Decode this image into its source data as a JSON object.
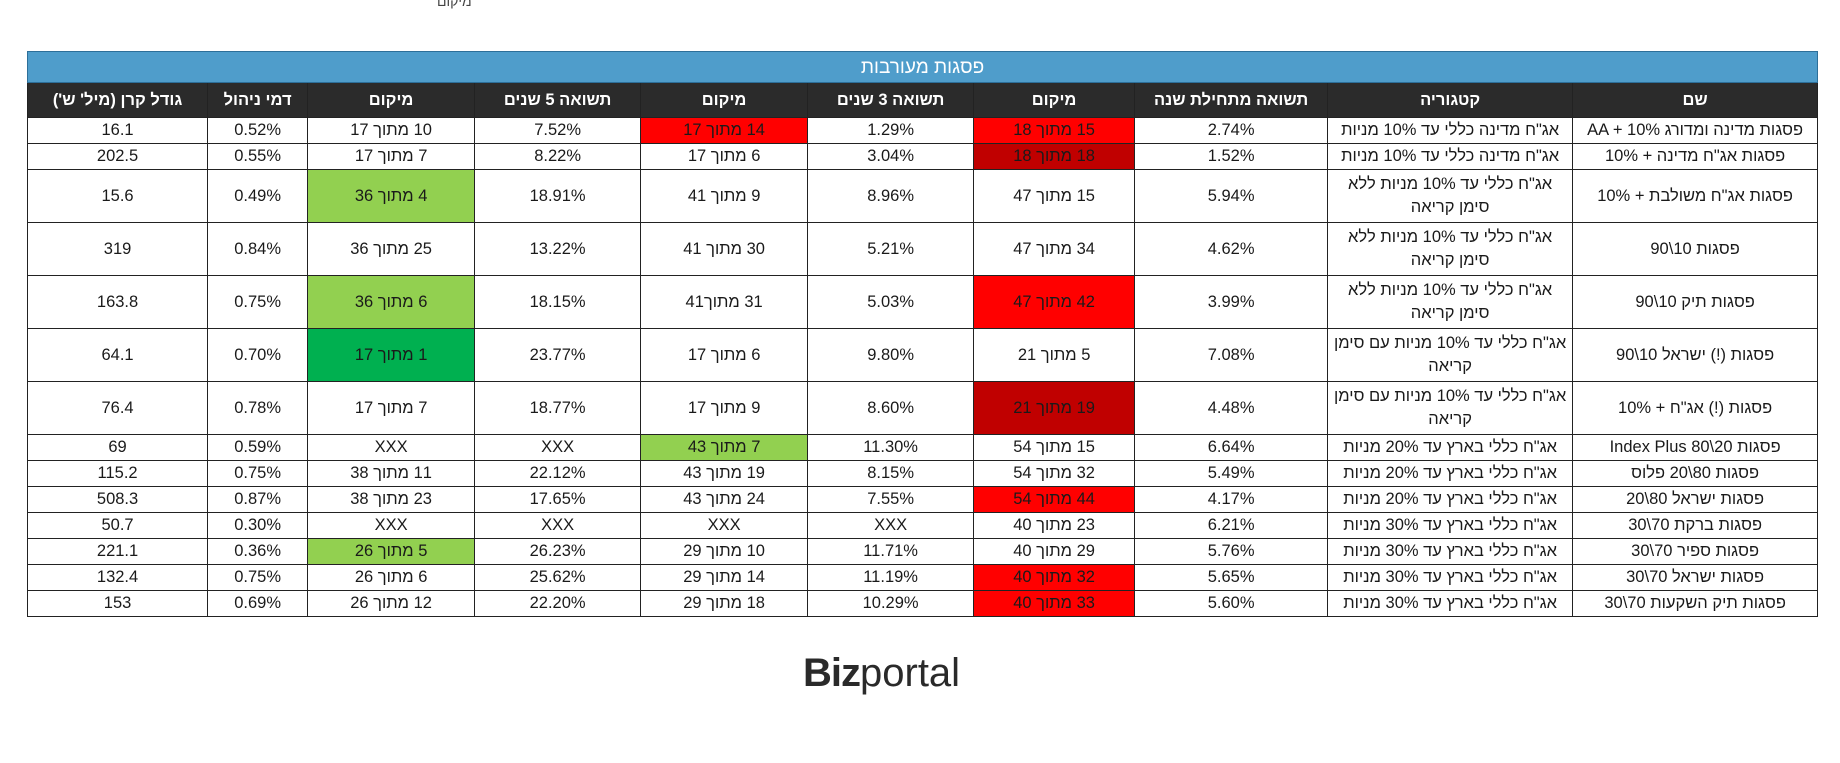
{
  "top_note": "מיקום",
  "table": {
    "title": "פסגות מעורבות",
    "headers": [
      "שם",
      "קטגוריה",
      "תשואה מתחילת שנה",
      "מיקום",
      "תשואה 3 שנים",
      "מיקום",
      "תשואה 5 שנים",
      "מיקום",
      "דמי ניהול",
      "גודל קרן (מיל' ש')"
    ],
    "rows": [
      {
        "tall": false,
        "cells": [
          "פסגות מדינה ומדורג AA + 10%",
          "אג\"ח מדינה כללי עד 10% מניות",
          "2.74%",
          "15 מתוך 18",
          "1.29%",
          "14 מתוך 17",
          "7.52%",
          "10 מתוך 17",
          "0.52%",
          "16.1"
        ],
        "colors": [
          "",
          "",
          "",
          "red",
          "",
          "red",
          "",
          "",
          "",
          ""
        ]
      },
      {
        "tall": false,
        "cells": [
          "פסגות אג\"ח מדינה + 10%",
          "אג\"ח מדינה כללי עד 10% מניות",
          "1.52%",
          "18 מתוך 18",
          "3.04%",
          "6 מתוך 17",
          "8.22%",
          "7 מתוך 17",
          "0.55%",
          "202.5"
        ],
        "colors": [
          "",
          "",
          "",
          "dred",
          "",
          "",
          "",
          "",
          "",
          ""
        ]
      },
      {
        "tall": true,
        "cells": [
          "פסגות אג\"ח משולבת + 10%",
          "אג\"ח כללי עד 10% מניות ללא סימן קריאה",
          "5.94%",
          "15 מתוך 47",
          "8.96%",
          "9 מתוך 41",
          "18.91%",
          "4 מתוך 36",
          "0.49%",
          "15.6"
        ],
        "colors": [
          "",
          "",
          "",
          "",
          "",
          "",
          "",
          "lgreen",
          "",
          ""
        ]
      },
      {
        "tall": true,
        "cells": [
          "פסגות 10\\90",
          "אג\"ח כללי עד 10% מניות ללא סימן קריאה",
          "4.62%",
          "34 מתוך 47",
          "5.21%",
          "30 מתוך 41",
          "13.22%",
          "25 מתוך 36",
          "0.84%",
          "319"
        ],
        "colors": [
          "",
          "",
          "",
          "",
          "",
          "",
          "",
          "",
          "",
          ""
        ]
      },
      {
        "tall": true,
        "cells": [
          "פסגות תיק 10\\90",
          "אג\"ח כללי עד 10% מניות ללא סימן קריאה",
          "3.99%",
          "42 מתוך 47",
          "5.03%",
          "31 מתוך41",
          "18.15%",
          "6 מתוך 36",
          "0.75%",
          "163.8"
        ],
        "colors": [
          "",
          "",
          "",
          "red",
          "",
          "",
          "",
          "lgreen",
          "",
          ""
        ]
      },
      {
        "tall": true,
        "cells": [
          "פסגות (!) ישראל 10\\90",
          "אג\"ח כללי עד 10% מניות עם סימן קריאה",
          "7.08%",
          "5 מתוך 21",
          "9.80%",
          "6 מתוך 17",
          "23.77%",
          "1 מתוך 17",
          "0.70%",
          "64.1"
        ],
        "colors": [
          "",
          "",
          "",
          "",
          "",
          "",
          "",
          "dgreen",
          "",
          ""
        ]
      },
      {
        "tall": true,
        "cells": [
          "פסגות (!) אג\"ח + 10%",
          "אג\"ח כללי עד 10% מניות עם סימן קריאה",
          "4.48%",
          "19 מתוך 21",
          "8.60%",
          "9 מתוך 17",
          "18.77%",
          "7 מתוך 17",
          "0.78%",
          "76.4"
        ],
        "colors": [
          "",
          "",
          "",
          "dred",
          "",
          "",
          "",
          "",
          "",
          ""
        ]
      },
      {
        "tall": false,
        "cells": [
          "פסגות Index Plus 80\\20",
          "אג\"ח כללי בארץ עד 20% מניות",
          "6.64%",
          "15 מתוך 54",
          "11.30%",
          "7 מתוך 43",
          "XXX",
          "XXX",
          "0.59%",
          "69"
        ],
        "colors": [
          "",
          "",
          "",
          "",
          "",
          "lgreen",
          "",
          "",
          "",
          ""
        ]
      },
      {
        "tall": false,
        "cells": [
          "פסגות 80\\20 פלוס",
          "אג\"ח כללי בארץ עד 20% מניות",
          "5.49%",
          "32 מתוך 54",
          "8.15%",
          "19 מתוך 43",
          "22.12%",
          "11 מתוך 38",
          "0.75%",
          "115.2"
        ],
        "colors": [
          "",
          "",
          "",
          "",
          "",
          "",
          "",
          "",
          "",
          ""
        ]
      },
      {
        "tall": false,
        "cells": [
          "פסגות ישראל 80\\20",
          "אג\"ח כללי בארץ עד 20% מניות",
          "4.17%",
          "44 מתוך 54",
          "7.55%",
          "24 מתוך 43",
          "17.65%",
          "23 מתוך 38",
          "0.87%",
          "508.3"
        ],
        "colors": [
          "",
          "",
          "",
          "red",
          "",
          "",
          "",
          "",
          "",
          ""
        ]
      },
      {
        "tall": false,
        "cells": [
          "פסגות ברקת 70\\30",
          "אג\"ח כללי בארץ עד 30% מניות",
          "6.21%",
          "23 מתוך 40",
          "XXX",
          "XXX",
          "XXX",
          "XXX",
          "0.30%",
          "50.7"
        ],
        "colors": [
          "",
          "",
          "",
          "",
          "",
          "",
          "",
          "",
          "",
          ""
        ]
      },
      {
        "tall": false,
        "cells": [
          "פסגות ספיר 70\\30",
          "אג\"ח כללי בארץ עד 30% מניות",
          "5.76%",
          "29 מתוך 40",
          "11.71%",
          "10 מתוך 29",
          "26.23%",
          "5 מתוך 26",
          "0.36%",
          "221.1"
        ],
        "colors": [
          "",
          "",
          "",
          "",
          "",
          "",
          "",
          "lgreen",
          "",
          ""
        ]
      },
      {
        "tall": false,
        "cells": [
          "פסגות ישראל 70\\30",
          "אג\"ח כללי בארץ עד 30% מניות",
          "5.65%",
          "32 מתוך 40",
          "11.19%",
          "14 מתוך 29",
          "25.62%",
          "6 מתוך 26",
          "0.75%",
          "132.4"
        ],
        "colors": [
          "",
          "",
          "",
          "red",
          "",
          "",
          "",
          "",
          "",
          ""
        ]
      },
      {
        "tall": false,
        "cells": [
          "פסגות תיק השקעות 70\\30",
          "אג\"ח כללי בארץ עד 30% מניות",
          "5.60%",
          "33 מתוך 40",
          "10.29%",
          "18 מתוך 29",
          "22.20%",
          "12 מתוך 26",
          "0.69%",
          "153"
        ],
        "colors": [
          "",
          "",
          "",
          "red",
          "",
          "",
          "",
          "",
          "",
          ""
        ]
      }
    ]
  },
  "logo": {
    "bold": "Biz",
    "regular": "portal"
  },
  "colors": {
    "red": "#ff0000",
    "dred": "#c00000",
    "lgreen": "#92d050",
    "dgreen": "#00b050",
    "title_bg": "#4f9dcb",
    "header_bg": "#2b2b2b"
  }
}
